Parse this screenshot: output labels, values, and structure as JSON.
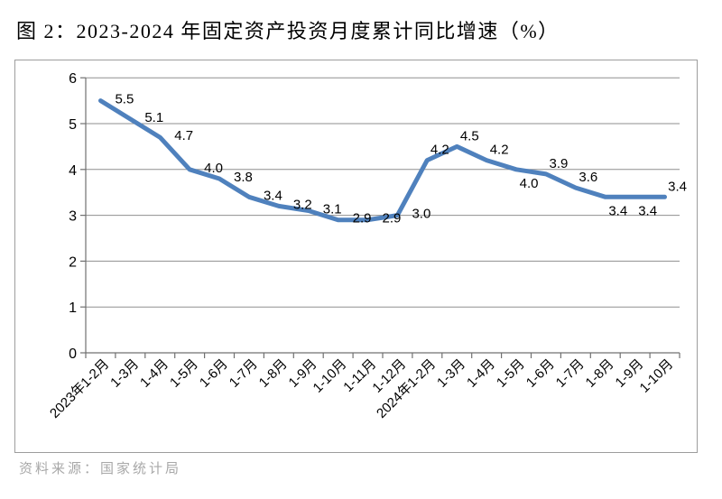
{
  "page": {
    "title": "图 2：2023-2024 年固定资产投资月度累计同比增速（%）",
    "source": "资料来源：国家统计局"
  },
  "colors": {
    "line": "#4F81BD",
    "gridline": "#8f8f8f",
    "axis": "#707070",
    "frame_border": "#9d9d9d",
    "data_label": "#000000",
    "axis_label": "#000000",
    "source_text": "#a8a8a8"
  },
  "chart_data": {
    "type": "line",
    "title": "图 2：2023-2024 年固定资产投资月度累计同比增速（%）",
    "categories": [
      "2023年1-2月",
      "1-3月",
      "1-4月",
      "1-5月",
      "1-6月",
      "1-7月",
      "1-8月",
      "1-9月",
      "1-10月",
      "1-11月",
      "1-12月",
      "2024年1-2月",
      "1-3月",
      "1-4月",
      "1-5月",
      "1-6月",
      "1-7月",
      "1-8月",
      "1-9月",
      "1-10月"
    ],
    "values": [
      5.5,
      5.1,
      4.7,
      4.0,
      3.8,
      3.4,
      3.2,
      3.1,
      2.9,
      2.9,
      3.0,
      4.2,
      4.5,
      4.2,
      4.0,
      3.9,
      3.6,
      3.4,
      3.4,
      3.4
    ],
    "data_labels": [
      "5.5",
      "5.1",
      "4.7",
      "4.0",
      "3.8",
      "3.4",
      "3.2",
      "3.1",
      "2.9",
      "2.9",
      "3.0",
      "4.2",
      "4.5",
      "4.2",
      "4.0",
      "3.9",
      "3.6",
      "3.4",
      "3.4",
      "3.4"
    ],
    "label_positions": [
      "right",
      "right",
      "right",
      "right",
      "right",
      "right",
      "right",
      "right",
      "right",
      "right",
      "right",
      "above",
      "above",
      "above",
      "below",
      "above",
      "above",
      "below",
      "below",
      "above"
    ],
    "xlabel": "",
    "ylabel": "",
    "ylim": [
      0,
      6
    ],
    "ytick_interval": 1,
    "ytick_labels": [
      "0",
      "1",
      "2",
      "3",
      "4",
      "5",
      "6"
    ],
    "grid": true,
    "legend": "none",
    "source": "资料来源：国家统计局"
  }
}
